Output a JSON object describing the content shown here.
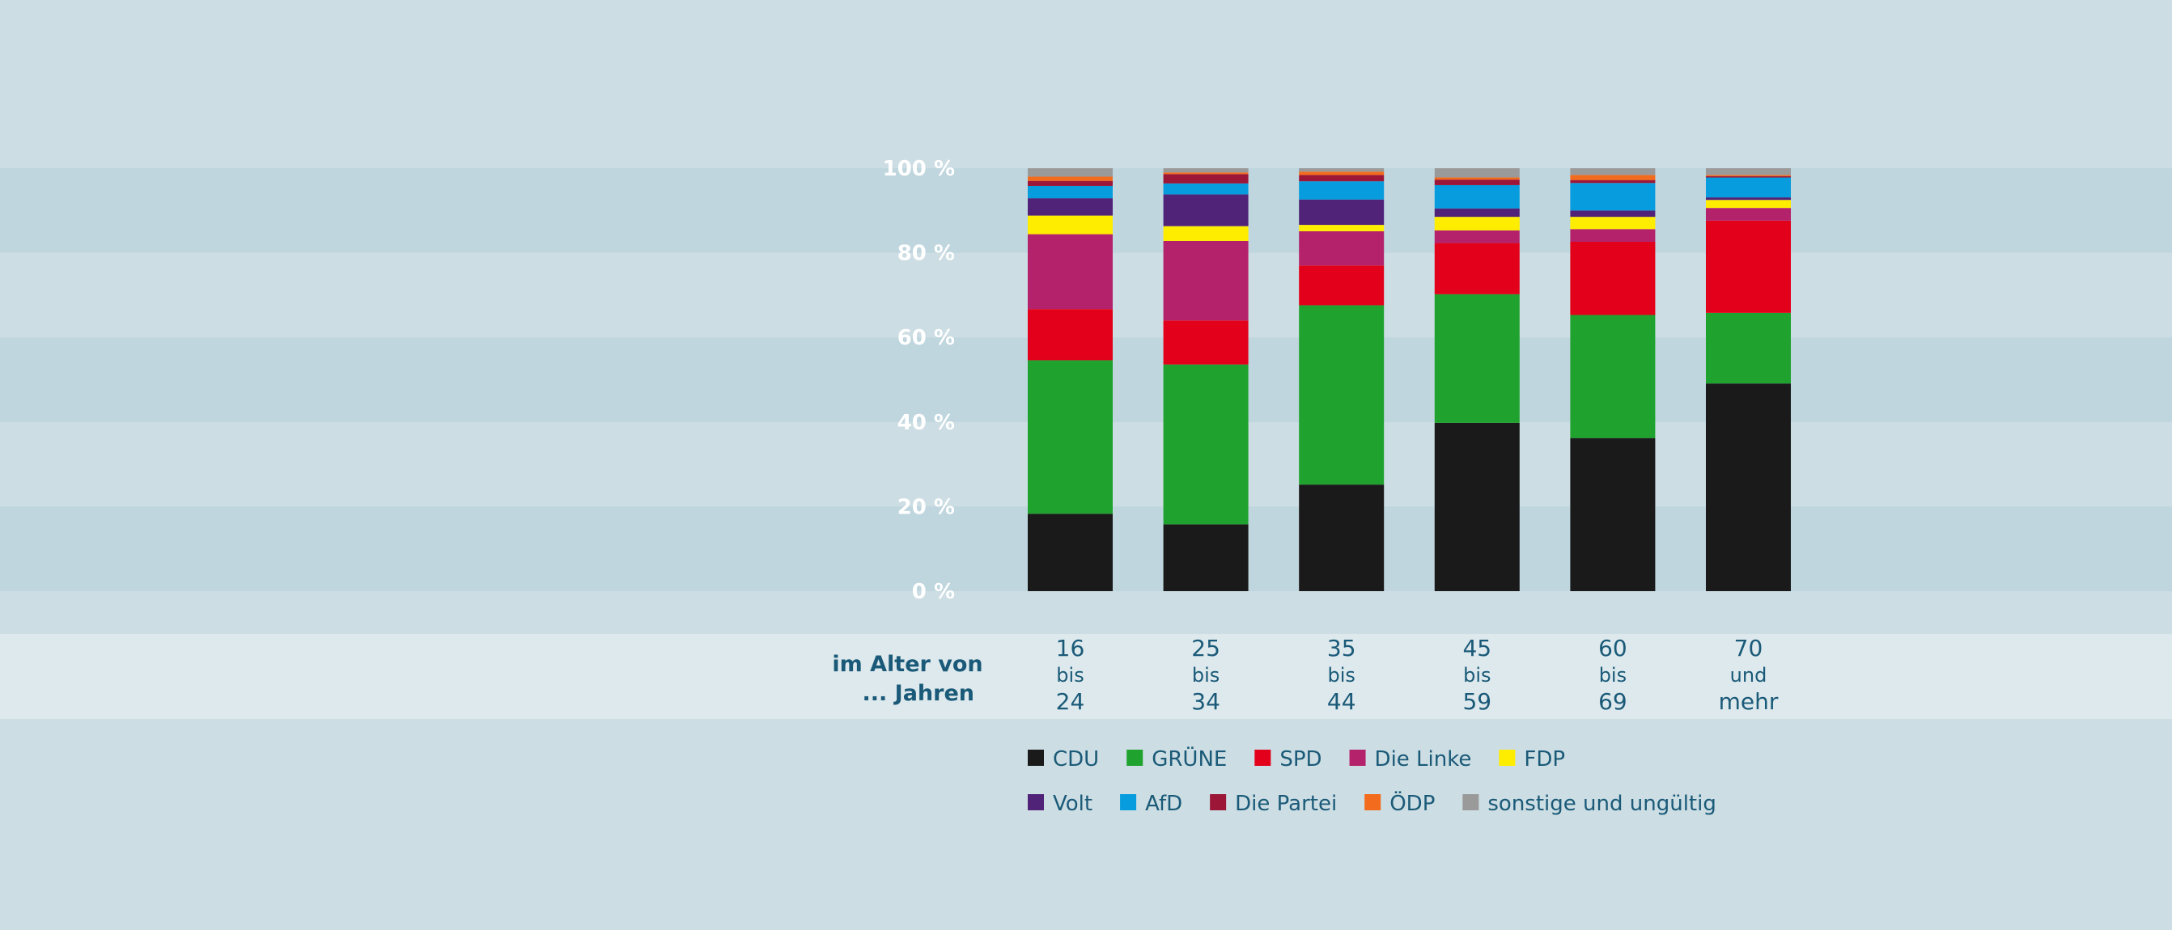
{
  "chart_data": {
    "type": "bar",
    "stacked": true,
    "ylim": [
      0,
      100
    ],
    "yticks": [
      {
        "value": 0,
        "label": "0 %"
      },
      {
        "value": 20,
        "label": "20 %"
      },
      {
        "value": 40,
        "label": "40 %"
      },
      {
        "value": 60,
        "label": "60 %"
      },
      {
        "value": 80,
        "label": "80 %"
      },
      {
        "value": 100,
        "label": "100 %"
      }
    ],
    "xlabel_lines": [
      "im Alter von",
      "... Jahren"
    ],
    "categories": [
      {
        "lines": [
          "16",
          "bis",
          "24"
        ]
      },
      {
        "lines": [
          "25",
          "bis",
          "34"
        ]
      },
      {
        "lines": [
          "35",
          "bis",
          "44"
        ]
      },
      {
        "lines": [
          "45",
          "bis",
          "59"
        ]
      },
      {
        "lines": [
          "60",
          "bis",
          "69"
        ]
      },
      {
        "lines": [
          "70",
          "und",
          "mehr"
        ]
      }
    ],
    "series": [
      {
        "name": "CDU",
        "color": "#1a1a1a",
        "values": [
          18.3,
          15.8,
          25.2,
          39.8,
          36.2,
          49.1
        ]
      },
      {
        "name": "GRÜNE",
        "color": "#1fa22e",
        "values": [
          36.3,
          37.8,
          42.4,
          30.4,
          29.1,
          16.7
        ]
      },
      {
        "name": "SPD",
        "color": "#e3001b",
        "values": [
          12.1,
          10.4,
          9.4,
          12.1,
          17.3,
          21.8
        ]
      },
      {
        "name": "Die Linke",
        "color": "#b4226b",
        "values": [
          17.7,
          18.8,
          8.1,
          3.0,
          3.0,
          3.0
        ]
      },
      {
        "name": "FDP",
        "color": "#ffed00",
        "values": [
          4.4,
          3.5,
          1.5,
          3.2,
          2.9,
          1.9
        ]
      },
      {
        "name": "Volt",
        "color": "#502379",
        "values": [
          4.1,
          7.5,
          6.0,
          2.0,
          1.5,
          0.6
        ]
      },
      {
        "name": "AfD",
        "color": "#069cdd",
        "values": [
          2.9,
          2.6,
          4.3,
          5.5,
          6.5,
          4.7
        ]
      },
      {
        "name": "Die Partei",
        "color": "#9c1638",
        "values": [
          1.2,
          2.2,
          1.5,
          1.3,
          0.7,
          0.3
        ]
      },
      {
        "name": "ÖDP",
        "color": "#f36b1c",
        "values": [
          1.0,
          0.4,
          0.8,
          0.5,
          1.2,
          0.3
        ]
      },
      {
        "name": "sonstige und ungültig",
        "color": "#9a9a9a",
        "values": [
          2.0,
          1.0,
          0.8,
          2.2,
          1.6,
          1.6
        ]
      }
    ],
    "legend_rows": [
      [
        "CDU",
        "GRÜNE",
        "SPD",
        "Die Linke",
        "FDP"
      ],
      [
        "Volt",
        "AfD",
        "Die Partei",
        "ÖDP",
        "sonstige und ungültig"
      ]
    ],
    "legend_placement": "bottom",
    "grid": "alternating horizontal bands",
    "colors": {
      "background": "#ccdde3",
      "band_dark": "#bfd6de",
      "axis_band": "#dde9ed",
      "tick_text": "#ffffff",
      "label_text": "#1a5a78"
    }
  }
}
